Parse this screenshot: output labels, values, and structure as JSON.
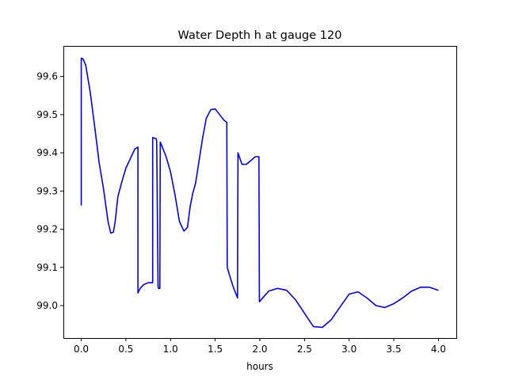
{
  "chart_data": {
    "type": "line",
    "title": "Water Depth h at gauge 120",
    "xlabel": "hours",
    "ylabel": "",
    "xlim": [
      -0.2,
      4.2
    ],
    "ylim": [
      98.915,
      99.68
    ],
    "grid": false,
    "xticks": [
      0.0,
      0.5,
      1.0,
      1.5,
      2.0,
      2.5,
      3.0,
      3.5,
      4.0
    ],
    "xtick_labels": [
      "0.0",
      "0.5",
      "1.0",
      "1.5",
      "2.0",
      "2.5",
      "3.0",
      "3.5",
      "4.0"
    ],
    "yticks": [
      99.0,
      99.1,
      99.2,
      99.3,
      99.4,
      99.5,
      99.6
    ],
    "ytick_labels": [
      "99.0",
      "99.1",
      "99.2",
      "99.3",
      "99.4",
      "99.5",
      "99.6"
    ],
    "series": [
      {
        "color": "#0000ff",
        "x": [
          0.0,
          0.0,
          0.02,
          0.05,
          0.1,
          0.15,
          0.2,
          0.25,
          0.3,
          0.33,
          0.36,
          0.38,
          0.41,
          0.45,
          0.5,
          0.55,
          0.6,
          0.635,
          0.635,
          0.66,
          0.7,
          0.75,
          0.8,
          0.8,
          0.84,
          0.845,
          0.86,
          0.865,
          0.865,
          0.88,
          0.885,
          0.9,
          0.95,
          1.0,
          1.05,
          1.1,
          1.15,
          1.19,
          1.22,
          1.25,
          1.28,
          1.32,
          1.36,
          1.4,
          1.45,
          1.5,
          1.55,
          1.6,
          1.63,
          1.635,
          1.66,
          1.7,
          1.75,
          1.755,
          1.8,
          1.85,
          1.9,
          1.95,
          1.99,
          1.995,
          2.05,
          2.1,
          2.2,
          2.3,
          2.4,
          2.5,
          2.6,
          2.7,
          2.8,
          2.9,
          3.0,
          3.1,
          3.2,
          3.3,
          3.4,
          3.5,
          3.6,
          3.7,
          3.8,
          3.9,
          4.0
        ],
        "y": [
          99.262,
          99.648,
          99.646,
          99.63,
          99.56,
          99.47,
          99.375,
          99.305,
          99.22,
          99.19,
          99.192,
          99.22,
          99.285,
          99.32,
          99.36,
          99.385,
          99.41,
          99.415,
          99.033,
          99.045,
          99.055,
          99.06,
          99.06,
          99.44,
          99.437,
          99.43,
          99.05,
          99.045,
          99.045,
          99.045,
          99.428,
          99.42,
          99.39,
          99.35,
          99.29,
          99.22,
          99.195,
          99.205,
          99.26,
          99.295,
          99.32,
          99.38,
          99.44,
          99.49,
          99.513,
          99.515,
          99.5,
          99.485,
          99.48,
          99.1,
          99.08,
          99.05,
          99.02,
          99.4,
          99.37,
          99.37,
          99.38,
          99.39,
          99.39,
          99.01,
          99.025,
          99.038,
          99.045,
          99.04,
          99.015,
          98.98,
          98.945,
          98.943,
          98.963,
          98.997,
          99.03,
          99.036,
          99.02,
          99.0,
          98.995,
          99.005,
          99.02,
          99.038,
          99.048,
          99.048,
          99.04
        ]
      }
    ]
  }
}
